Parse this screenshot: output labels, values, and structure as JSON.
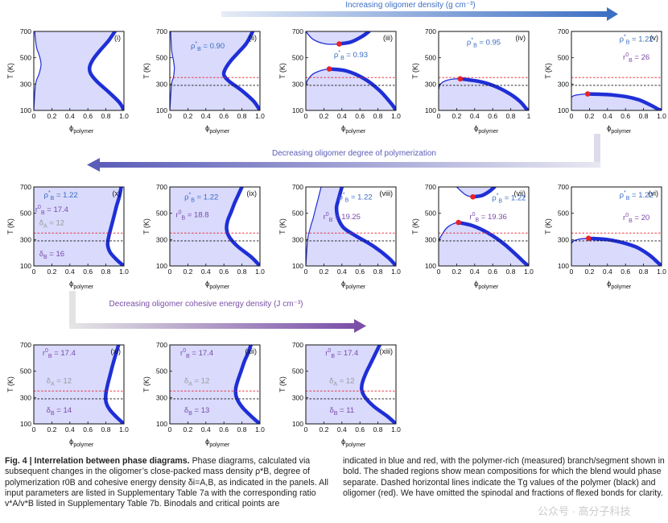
{
  "colors": {
    "binodal": "#1f2fd6",
    "fill": "#d9dafc",
    "critical": "#e8212a",
    "tg_polymer": "#111111",
    "tg_oligomer": "#e8212a",
    "density_arrow": "#3d6fc4",
    "dp_arrow": "#5b5db8",
    "ced_arrow": "#7a4fa8",
    "rho_label": "#3a6cc0",
    "r_label": "#7a4aa8",
    "delta_a_label": "#999999",
    "delta_b_label": "#7a4aa8"
  },
  "arrows": {
    "density": "Increasing oligomer density (g cm⁻³)",
    "dp": "Decreasing oligomer degree of polymerization",
    "ced": "Decreasing oligomer cohesive energy density (J cm⁻³)"
  },
  "chart_data": [
    {
      "type": "line",
      "id": "i",
      "panel_label": "(i)",
      "xlabel": "ϕ",
      "xlabel_sub": "polymer",
      "ylabel": "T (K)",
      "xlim": [
        0,
        1
      ],
      "ylim": [
        100,
        700
      ],
      "xticks": [
        "0",
        "0.2",
        "0.4",
        "0.6",
        "0.8",
        "1.0"
      ],
      "yticks": [
        "100",
        "300",
        "500",
        "700"
      ],
      "tg_polymer": null,
      "tg_oligomer": null,
      "critical": null,
      "rho": null,
      "r0": null,
      "delta_a": null,
      "delta_b": null
    },
    {
      "type": "line",
      "id": "ii",
      "panel_label": "(ii)",
      "xlabel": "ϕ",
      "xlabel_sub": "polymer",
      "ylabel": "T (K)",
      "xlim": [
        0,
        1
      ],
      "ylim": [
        100,
        700
      ],
      "xticks": [
        "0",
        "0.2",
        "0.4",
        "0.6",
        "0.8",
        "1.0"
      ],
      "yticks": [
        "100",
        "300",
        "500",
        "700"
      ],
      "tg_polymer": 290,
      "tg_oligomer": 350,
      "critical": null,
      "rho": "0.90",
      "r0": null,
      "delta_a": null,
      "delta_b": null
    },
    {
      "type": "line",
      "id": "iii",
      "panel_label": "(iii)",
      "xlabel": "ϕ",
      "xlabel_sub": "polymer",
      "ylabel": "T (K)",
      "xlim": [
        0,
        1
      ],
      "ylim": [
        100,
        700
      ],
      "xticks": [
        "0",
        "0.2",
        "0.4",
        "0.6",
        "0.8",
        "1.0"
      ],
      "yticks": [
        "100",
        "300",
        "500",
        "700"
      ],
      "tg_polymer": 290,
      "tg_oligomer": 350,
      "critical": [
        [
          0.26,
          415
        ],
        [
          0.37,
          605
        ]
      ],
      "rho": "0.93",
      "r0": null,
      "delta_a": null,
      "delta_b": null
    },
    {
      "type": "line",
      "id": "iv",
      "panel_label": "(iv)",
      "xlabel": "ϕ",
      "xlabel_sub": "polymer",
      "ylabel": "T (K)",
      "xlim": [
        0,
        1
      ],
      "ylim": [
        100,
        700
      ],
      "xticks": [
        "0",
        "0.2",
        "0.4",
        "0.6",
        "0.8",
        "1"
      ],
      "yticks": [
        "100",
        "300",
        "500",
        "700"
      ],
      "tg_polymer": 290,
      "tg_oligomer": 350,
      "critical": [
        [
          0.24,
          340
        ]
      ],
      "rho": "0.95",
      "r0": null,
      "delta_a": null,
      "delta_b": null
    },
    {
      "type": "line",
      "id": "v",
      "panel_label": "(v)",
      "xlabel": "ϕ",
      "xlabel_sub": "polymer",
      "ylabel": "T (K)",
      "xlim": [
        0,
        1
      ],
      "ylim": [
        100,
        700
      ],
      "xticks": [
        "0",
        "0.2",
        "0.4",
        "0.6",
        "0.8",
        "1.0"
      ],
      "yticks": [
        "100",
        "300",
        "500",
        "700"
      ],
      "tg_polymer": 290,
      "tg_oligomer": 350,
      "critical": [
        [
          0.18,
          225
        ]
      ],
      "rho": "1.22",
      "r0": "26",
      "delta_a": null,
      "delta_b": null
    },
    {
      "type": "line",
      "id": "vi",
      "panel_label": "(vi)",
      "xlabel": "ϕ",
      "xlabel_sub": "polymer",
      "ylabel": "T (K)",
      "xlim": [
        0,
        1
      ],
      "ylim": [
        100,
        700
      ],
      "xticks": [
        "0",
        "0.2",
        "0.4",
        "0.6",
        "0.8",
        "1.0"
      ],
      "yticks": [
        "100",
        "300",
        "500",
        "700"
      ],
      "tg_polymer": 290,
      "tg_oligomer": 350,
      "critical": [
        [
          0.19,
          310
        ]
      ],
      "rho": "1.22",
      "r0": "20",
      "delta_a": null,
      "delta_b": null
    },
    {
      "type": "line",
      "id": "vii",
      "panel_label": "(vii)",
      "xlabel": "ϕ",
      "xlabel_sub": "polymer",
      "ylabel": "T (K)",
      "xlim": [
        0,
        1
      ],
      "ylim": [
        100,
        700
      ],
      "xticks": [
        "0",
        "0.2",
        "0.4",
        "0.6",
        "0.8",
        "1.0"
      ],
      "yticks": [
        "100",
        "300",
        "500",
        "700"
      ],
      "tg_polymer": 290,
      "tg_oligomer": 350,
      "critical": [
        [
          0.22,
          430
        ],
        [
          0.38,
          625
        ]
      ],
      "rho": "1.22",
      "r0": "19.36",
      "delta_a": null,
      "delta_b": null
    },
    {
      "type": "line",
      "id": "viii",
      "panel_label": "(viii)",
      "xlabel": "ϕ",
      "xlabel_sub": "polymer",
      "ylabel": "T (K)",
      "xlim": [
        0,
        1
      ],
      "ylim": [
        100,
        700
      ],
      "xticks": [
        "0",
        "0.2",
        "0.4",
        "0.6",
        "0.8",
        "1.0"
      ],
      "yticks": [
        "100",
        "300",
        "500",
        "700"
      ],
      "tg_polymer": 290,
      "tg_oligomer": 350,
      "critical": null,
      "rho": "1.22",
      "r0": "19.25",
      "delta_a": null,
      "delta_b": null
    },
    {
      "type": "line",
      "id": "ix",
      "panel_label": "(ix)",
      "xlabel": "ϕ",
      "xlabel_sub": "polymer",
      "ylabel": "T (K)",
      "xlim": [
        0,
        1
      ],
      "ylim": [
        100,
        700
      ],
      "xticks": [
        "0",
        "0.2",
        "0.4",
        "0.6",
        "0.8",
        "1.0"
      ],
      "yticks": [
        "100",
        "300",
        "500",
        "700"
      ],
      "tg_polymer": 290,
      "tg_oligomer": 350,
      "critical": null,
      "rho": "1.22",
      "r0": "18.8",
      "delta_a": null,
      "delta_b": null
    },
    {
      "type": "line",
      "id": "x",
      "panel_label": "(x)",
      "xlabel": "ϕ",
      "xlabel_sub": "polymer",
      "ylabel": "T (K)",
      "xlim": [
        0,
        1
      ],
      "ylim": [
        100,
        700
      ],
      "xticks": [
        "0",
        "0.2",
        "0.4",
        "0.6",
        "0.8",
        "1.0"
      ],
      "yticks": [
        "100",
        "300",
        "500",
        "700"
      ],
      "tg_polymer": 290,
      "tg_oligomer": 350,
      "critical": null,
      "rho": "1.22",
      "r0": "17.4",
      "delta_a": "12",
      "delta_b": "16"
    },
    {
      "type": "line",
      "id": "xi",
      "panel_label": "(xi)",
      "xlabel": "ϕ",
      "xlabel_sub": "polymer",
      "ylabel": "T (K)",
      "xlim": [
        0,
        1
      ],
      "ylim": [
        100,
        700
      ],
      "xticks": [
        "0",
        "0.2",
        "0.4",
        "0.6",
        "0.8",
        "1.0"
      ],
      "yticks": [
        "100",
        "300",
        "500",
        "700"
      ],
      "tg_polymer": 290,
      "tg_oligomer": 350,
      "critical": null,
      "rho": null,
      "r0": "17.4",
      "delta_a": "12",
      "delta_b": "14"
    },
    {
      "type": "line",
      "id": "xii",
      "panel_label": "(xii)",
      "xlabel": "ϕ",
      "xlabel_sub": "polymer",
      "ylabel": "T (K)",
      "xlim": [
        0,
        1
      ],
      "ylim": [
        100,
        700
      ],
      "xticks": [
        "0",
        "0.2",
        "0.4",
        "0.6",
        "0.8",
        "1.0"
      ],
      "yticks": [
        "100",
        "300",
        "500",
        "700"
      ],
      "tg_polymer": 290,
      "tg_oligomer": 350,
      "critical": null,
      "rho": null,
      "r0": "17.4",
      "delta_a": "12",
      "delta_b": "13"
    },
    {
      "type": "line",
      "id": "xiii",
      "panel_label": "(xiii)",
      "xlabel": "ϕ",
      "xlabel_sub": "polymer",
      "ylabel": "T (K)",
      "xlim": [
        0,
        1
      ],
      "ylim": [
        100,
        700
      ],
      "xticks": [
        "0",
        "0.2",
        "0.4",
        "0.6",
        "0.8",
        "1.0"
      ],
      "yticks": [
        "100",
        "300",
        "500",
        "700"
      ],
      "tg_polymer": 290,
      "tg_oligomer": 350,
      "critical": null,
      "rho": null,
      "r0": "17.4",
      "delta_a": "12",
      "delta_b": "11"
    }
  ],
  "caption": {
    "label": "Fig. 4 | Interrelation between phase diagrams.",
    "left_text": " Phase diagrams, calculated via subsequent changes in the oligomer’s close-packed mass density ρ*B, degree of polymerization r0B and cohesive energy density δi=A,B, as indicated in the panels. All input parameters are listed in Supplementary Table 7a with the corresponding ratio v*A/v*B listed in Supplementary Table 7b. Binodals and critical points are",
    "right_text": "indicated in blue and red, with the polymer-rich (measured) branch/segment shown in bold. The shaded regions show mean compositions for which the blend would phase separate. Dashed horizontal lines indicate the Tg values of the polymer (black) and oligomer (red). We have omitted the spinodal and fractions of flexed bonds for clarity."
  },
  "watermark": "公众号 · 高分子科技"
}
